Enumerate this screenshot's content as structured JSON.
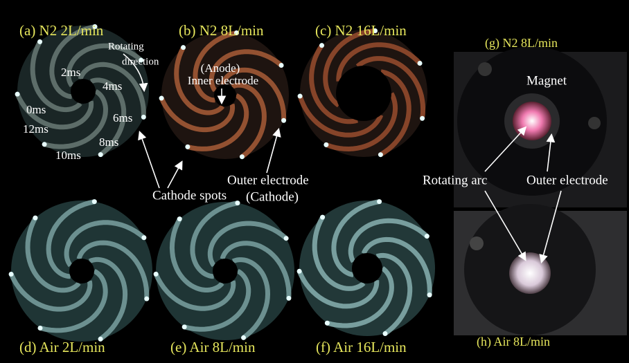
{
  "panels": [
    {
      "label": "(a) N2 2L/min"
    },
    {
      "label": "(b) N2 8L/min"
    },
    {
      "label": "(c) N2 16L/min"
    },
    {
      "label": "(d) Air 2L/min"
    },
    {
      "label": "(e) Air 8L/min"
    },
    {
      "label": "(f) Air 16L/min"
    },
    {
      "label": "(g) N2 8L/min"
    },
    {
      "label": "(h) Air 8L/min"
    }
  ],
  "annotations": {
    "rotating": "Rotating",
    "direction": "direction",
    "times": [
      "0ms",
      "2ms",
      "4ms",
      "6ms",
      "8ms",
      "10ms",
      "12ms"
    ],
    "anode": "(Anode)",
    "inner": "Inner electrode",
    "cathode_spots": "Cathode spots",
    "outer": "Outer electrode",
    "cathode": "(Cathode)",
    "magnet": "Magnet",
    "rotating_arc": "Rotating arc",
    "outer_g": "Outer electrode"
  }
}
